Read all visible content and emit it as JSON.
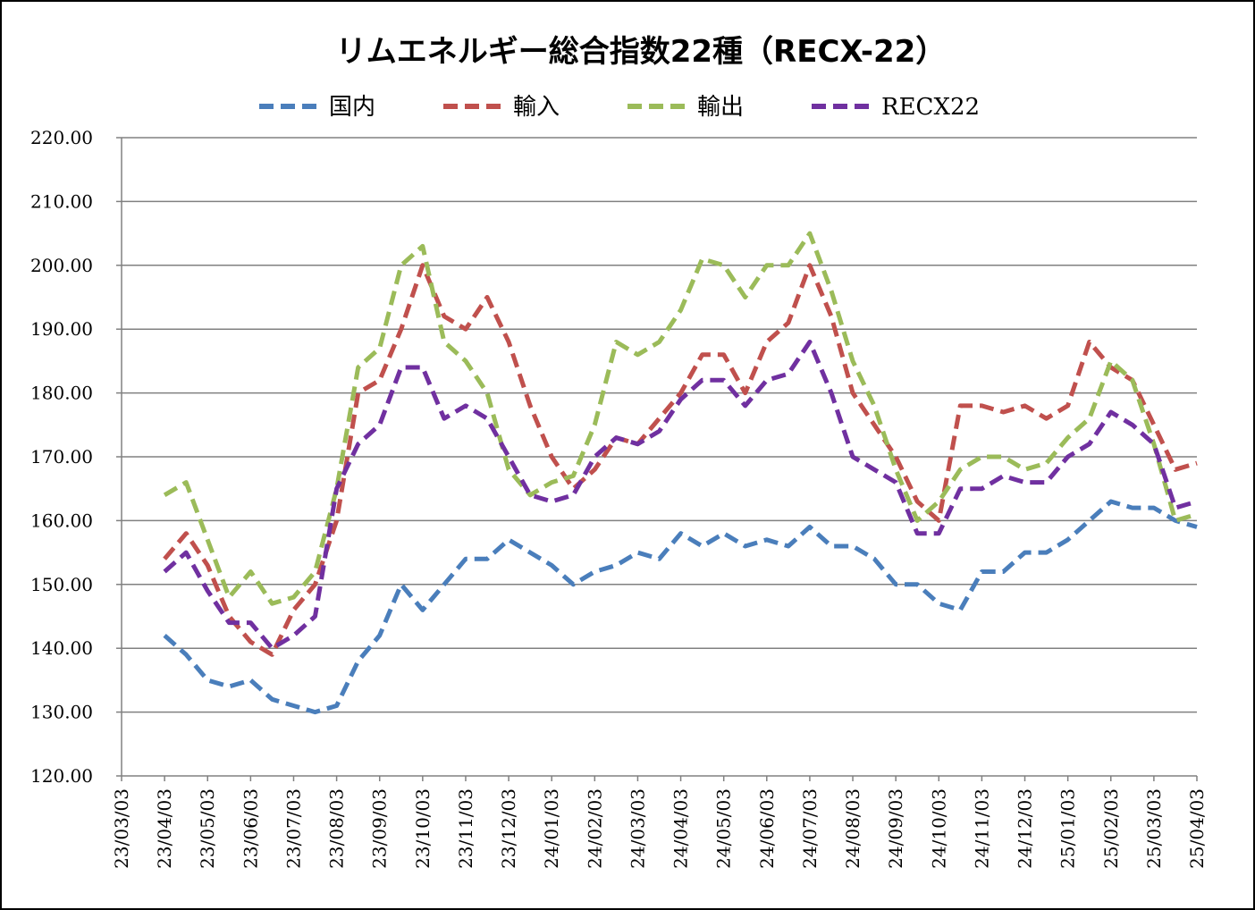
{
  "chart_data": {
    "type": "line",
    "title": "リムエネルギー総合指数22種（RECX-22）",
    "xlabel": "",
    "ylabel": "",
    "ylim": [
      120,
      220
    ],
    "y_ticks": [
      "120.00",
      "130.00",
      "140.00",
      "150.00",
      "160.00",
      "170.00",
      "180.00",
      "190.00",
      "200.00",
      "210.00",
      "220.00"
    ],
    "x_ticks": [
      "23/03/03",
      "23/04/03",
      "23/05/03",
      "23/06/03",
      "23/07/03",
      "23/08/03",
      "23/09/03",
      "23/10/03",
      "23/11/03",
      "23/12/03",
      "24/01/03",
      "24/02/03",
      "24/03/03",
      "24/04/03",
      "24/05/03",
      "24/06/03",
      "24/07/03",
      "24/08/03",
      "24/09/03",
      "24/10/03",
      "24/11/03",
      "24/12/03",
      "25/01/03",
      "25/02/03",
      "25/03/03",
      "25/04/03"
    ],
    "legend_position": "top",
    "grid": true,
    "x_dates": [
      "23/04/03",
      "23/04/18",
      "23/05/03",
      "23/05/18",
      "23/06/03",
      "23/06/18",
      "23/07/03",
      "23/07/18",
      "23/08/03",
      "23/08/18",
      "23/09/03",
      "23/09/18",
      "23/10/03",
      "23/10/18",
      "23/11/03",
      "23/11/18",
      "23/12/03",
      "23/12/18",
      "24/01/03",
      "24/01/18",
      "24/02/03",
      "24/02/18",
      "24/03/03",
      "24/03/18",
      "24/04/03",
      "24/04/18",
      "24/05/03",
      "24/05/18",
      "24/06/03",
      "24/06/18",
      "24/07/03",
      "24/07/18",
      "24/08/03",
      "24/08/18",
      "24/09/03",
      "24/09/18",
      "24/10/03",
      "24/10/18",
      "24/11/03",
      "24/11/18",
      "24/12/03",
      "24/12/18",
      "25/01/03",
      "25/01/18",
      "25/02/03",
      "25/02/18",
      "25/03/03",
      "25/03/18",
      "25/04/03"
    ],
    "series": [
      {
        "name": "国内",
        "color": "#4a7ebb",
        "values": [
          142,
          139,
          135,
          134,
          135,
          132,
          131,
          130,
          131,
          138,
          142,
          150,
          146,
          150,
          154,
          154,
          157,
          155,
          153,
          150,
          152,
          153,
          155,
          154,
          158,
          156,
          158,
          156,
          157,
          156,
          159,
          156,
          156,
          154,
          150,
          150,
          147,
          146,
          152,
          152,
          155,
          155,
          157,
          160,
          163,
          162,
          162,
          160,
          159
        ]
      },
      {
        "name": "輸入",
        "color": "#c0504d",
        "values": [
          154,
          158,
          153,
          145,
          141,
          139,
          146,
          150,
          160,
          180,
          182,
          190,
          200,
          192,
          190,
          195,
          188,
          178,
          170,
          165,
          168,
          173,
          172,
          176,
          180,
          186,
          186,
          180,
          188,
          191,
          200,
          192,
          180,
          175,
          170,
          163,
          160,
          178,
          178,
          177,
          178,
          176,
          178,
          188,
          184,
          182,
          175,
          168,
          169
        ]
      },
      {
        "name": "輸出",
        "color": "#9bbb59",
        "values": [
          164,
          166,
          157,
          148,
          152,
          147,
          148,
          152,
          165,
          184,
          187,
          200,
          203,
          188,
          185,
          180,
          168,
          164,
          166,
          167,
          175,
          188,
          186,
          188,
          193,
          201,
          200,
          195,
          200,
          200,
          205,
          196,
          185,
          178,
          168,
          160,
          163,
          168,
          170,
          170,
          168,
          169,
          173,
          176,
          185,
          182,
          172,
          160,
          161
        ]
      },
      {
        "name": "RECX22",
        "color": "#7030a0",
        "values": [
          152,
          155,
          149,
          144,
          144,
          140,
          142,
          145,
          165,
          172,
          175,
          184,
          184,
          176,
          178,
          176,
          170,
          164,
          163,
          164,
          170,
          173,
          172,
          174,
          179,
          182,
          182,
          178,
          182,
          183,
          188,
          180,
          170,
          168,
          166,
          158,
          158,
          165,
          165,
          167,
          166,
          166,
          170,
          172,
          177,
          175,
          172,
          162,
          163
        ]
      }
    ]
  }
}
